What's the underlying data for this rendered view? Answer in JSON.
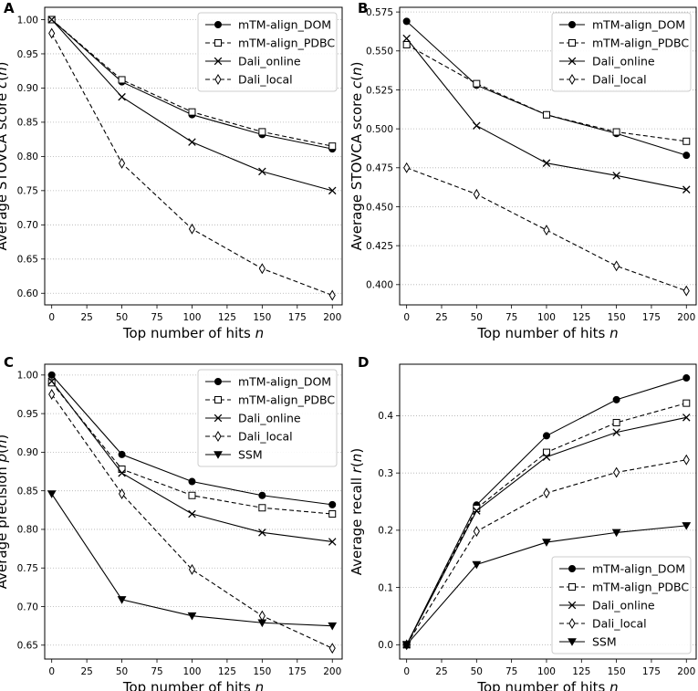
{
  "chart_data": [
    {
      "panel": "A",
      "type": "line",
      "x": [
        0,
        50,
        100,
        150,
        200
      ],
      "xlim": [
        -5,
        207
      ],
      "ylim": [
        0.583,
        1.018
      ],
      "xticks": [
        "0",
        "25",
        "50",
        "75",
        "100",
        "125",
        "150",
        "175",
        "200"
      ],
      "yticks": [
        "0.60",
        "0.65",
        "0.70",
        "0.75",
        "0.80",
        "0.85",
        "0.90",
        "0.95",
        "1.00"
      ],
      "xlabel_parts": [
        "Top number of hits ",
        "n",
        ""
      ],
      "ylabel_parts": [
        "Average STOVCA score ",
        "c",
        "(",
        "n",
        ")"
      ],
      "legend_pos": "top-right",
      "grid": "y-dotted",
      "series": [
        {
          "name": "mTM-align_DOM",
          "values": [
            1.0,
            0.909,
            0.861,
            0.832,
            0.811
          ]
        },
        {
          "name": "mTM-align_PDBC",
          "values": [
            1.0,
            0.912,
            0.865,
            0.836,
            0.815
          ]
        },
        {
          "name": "Dali_online",
          "values": [
            1.0,
            0.887,
            0.821,
            0.778,
            0.75
          ]
        },
        {
          "name": "Dali_local",
          "values": [
            0.98,
            0.79,
            0.694,
            0.636,
            0.597
          ]
        }
      ]
    },
    {
      "panel": "B",
      "type": "line",
      "x": [
        0,
        50,
        100,
        150,
        200
      ],
      "xlim": [
        -5,
        207
      ],
      "ylim": [
        0.387,
        0.578
      ],
      "xticks": [
        "0",
        "25",
        "50",
        "75",
        "100",
        "125",
        "150",
        "175",
        "200"
      ],
      "yticks": [
        "0.400",
        "0.425",
        "0.450",
        "0.475",
        "0.500",
        "0.525",
        "0.550",
        "0.575"
      ],
      "xlabel_parts": [
        "Top number of hits ",
        "n",
        ""
      ],
      "ylabel_parts": [
        "Average STOVCA score ",
        "c",
        "(",
        "n",
        ")"
      ],
      "legend_pos": "top-right",
      "grid": "y-dotted",
      "series": [
        {
          "name": "mTM-align_DOM",
          "values": [
            0.569,
            0.528,
            0.509,
            0.497,
            0.483
          ]
        },
        {
          "name": "mTM-align_PDBC",
          "values": [
            0.554,
            0.529,
            0.509,
            0.498,
            0.492
          ]
        },
        {
          "name": "Dali_online",
          "values": [
            0.558,
            0.502,
            0.478,
            0.47,
            0.461
          ]
        },
        {
          "name": "Dali_local",
          "values": [
            0.475,
            0.458,
            0.435,
            0.412,
            0.396
          ]
        }
      ]
    },
    {
      "panel": "C",
      "type": "line",
      "x": [
        0,
        50,
        100,
        150,
        200
      ],
      "xlim": [
        -5,
        207
      ],
      "ylim": [
        0.632,
        1.014
      ],
      "xticks": [
        "0",
        "25",
        "50",
        "75",
        "100",
        "125",
        "150",
        "175",
        "200"
      ],
      "yticks": [
        "0.65",
        "0.70",
        "0.75",
        "0.80",
        "0.85",
        "0.90",
        "0.95",
        "1.00"
      ],
      "xlabel_parts": [
        "Top number of hits ",
        "n",
        ""
      ],
      "ylabel_parts": [
        "Average precision ",
        "p",
        "(",
        "n",
        ")"
      ],
      "legend_pos": "top-right",
      "grid": "y-dotted",
      "series": [
        {
          "name": "mTM-align_DOM",
          "values": [
            1.0,
            0.897,
            0.862,
            0.844,
            0.832
          ]
        },
        {
          "name": "mTM-align_PDBC",
          "values": [
            0.99,
            0.878,
            0.844,
            0.828,
            0.82
          ]
        },
        {
          "name": "Dali_online",
          "values": [
            0.992,
            0.873,
            0.82,
            0.796,
            0.784
          ]
        },
        {
          "name": "Dali_local",
          "values": [
            0.975,
            0.846,
            0.748,
            0.688,
            0.646
          ]
        },
        {
          "name": "SSM",
          "values": [
            0.846,
            0.709,
            0.688,
            0.679,
            0.675
          ]
        }
      ]
    },
    {
      "panel": "D",
      "type": "line",
      "x": [
        0,
        50,
        100,
        150,
        200
      ],
      "xlim": [
        -5,
        207
      ],
      "ylim": [
        -0.025,
        0.49
      ],
      "xticks": [
        "0",
        "25",
        "50",
        "75",
        "100",
        "125",
        "150",
        "175",
        "200"
      ],
      "yticks": [
        "0.0",
        "0.1",
        "0.2",
        "0.3",
        "0.4"
      ],
      "xlabel_parts": [
        "Top number of hits ",
        "n",
        ""
      ],
      "ylabel_parts": [
        "Average recall ",
        "r",
        "(",
        "n",
        ")"
      ],
      "legend_pos": "bottom-right",
      "grid": "y-dotted",
      "series": [
        {
          "name": "mTM-align_DOM",
          "values": [
            0.0,
            0.244,
            0.365,
            0.428,
            0.466
          ]
        },
        {
          "name": "mTM-align_PDBC",
          "values": [
            0.0,
            0.238,
            0.336,
            0.388,
            0.422
          ]
        },
        {
          "name": "Dali_online",
          "values": [
            0.0,
            0.234,
            0.328,
            0.371,
            0.397
          ]
        },
        {
          "name": "Dali_local",
          "values": [
            0.0,
            0.198,
            0.265,
            0.301,
            0.323
          ]
        },
        {
          "name": "SSM",
          "values": [
            0.0,
            0.14,
            0.179,
            0.196,
            0.208
          ]
        }
      ]
    }
  ]
}
